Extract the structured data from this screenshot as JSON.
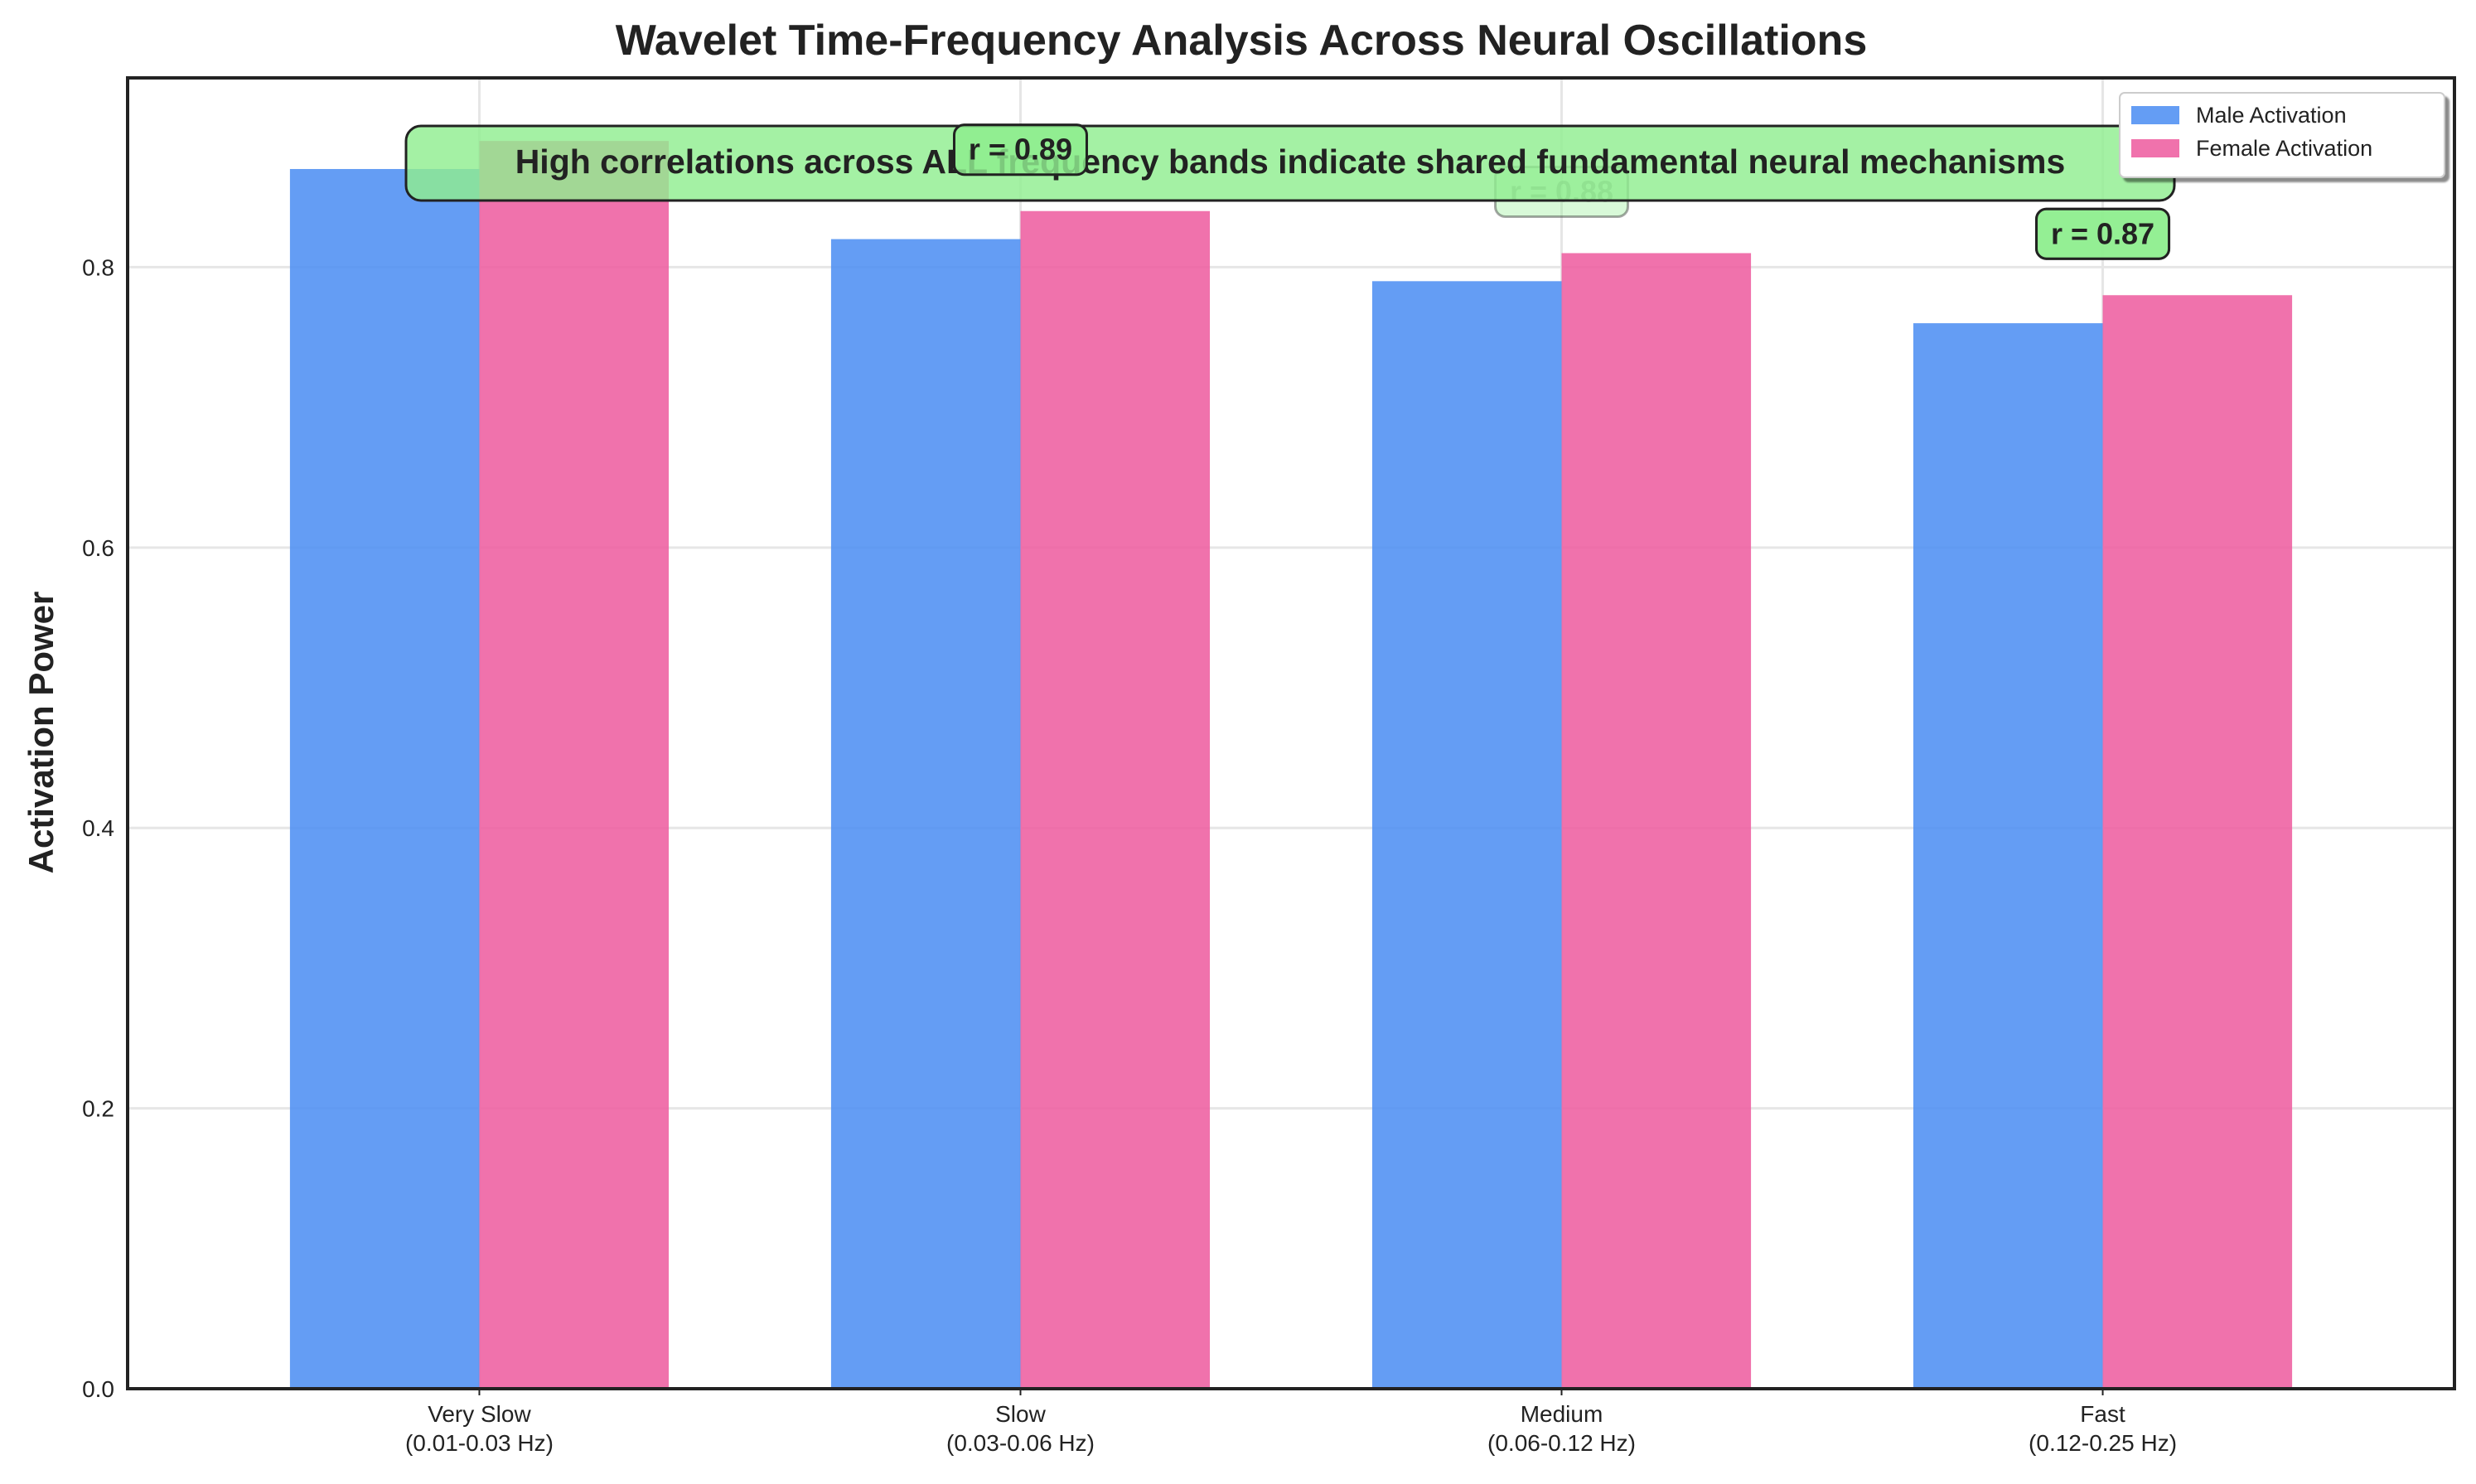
{
  "chart_data": {
    "type": "bar",
    "title": "Wavelet Time-Frequency Analysis Across Neural Oscillations",
    "xlabel": "",
    "ylabel": "Activation Power",
    "categories": [
      [
        "Very Slow",
        "(0.01-0.03 Hz)"
      ],
      [
        "Slow",
        "(0.03-0.06 Hz)"
      ],
      [
        "Medium",
        "(0.06-0.12 Hz)"
      ],
      [
        "Fast",
        "(0.12-0.25 Hz)"
      ]
    ],
    "series": [
      {
        "name": "Male Activation",
        "color": "#4f8ff3",
        "values": [
          0.87,
          0.82,
          0.79,
          0.76
        ]
      },
      {
        "name": "Female Activation",
        "color": "#ee5ea1",
        "values": [
          0.89,
          0.84,
          0.81,
          0.78
        ]
      }
    ],
    "ylim": [
      0,
      0.935
    ],
    "yticks": [
      0.0,
      0.2,
      0.4,
      0.6,
      0.8
    ],
    "ytick_labels": [
      "0.0",
      "0.2",
      "0.4",
      "0.6",
      "0.8"
    ],
    "grid": true,
    "legend_position": "top-right",
    "correlation_labels": [
      "r = 0.89",
      "r = 0.88",
      "r = 0.87"
    ],
    "annotation": "High correlations across ALL frequency bands indicate shared fundamental neural mechanisms",
    "annotation_color": "#90ee90"
  }
}
